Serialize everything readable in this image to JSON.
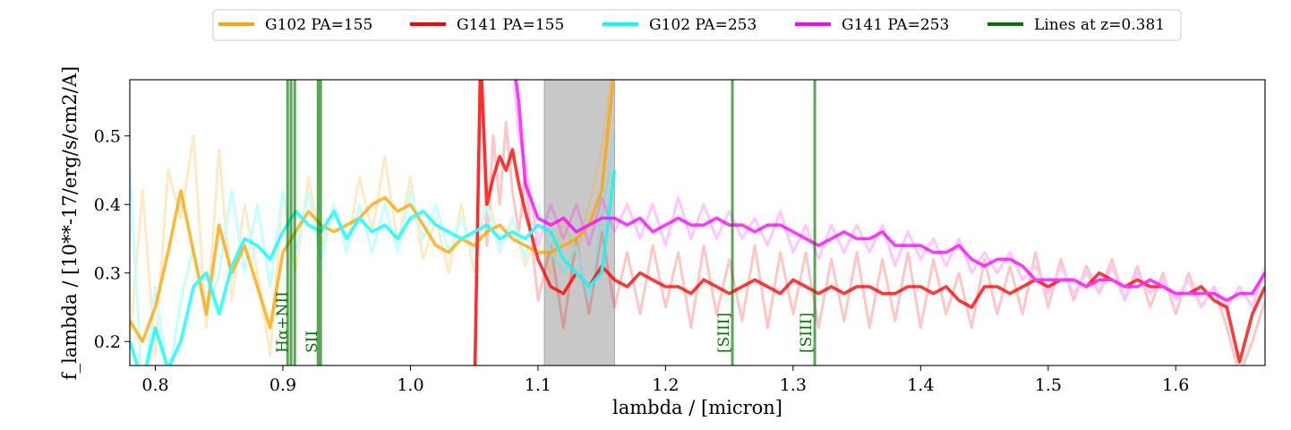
{
  "chart_data": {
    "type": "line",
    "xlabel": "lambda / [micron]",
    "ylabel": "f_lambda / [10**-17/erg/s/cm2/A]",
    "xlim": [
      0.78,
      1.67
    ],
    "ylim": [
      0.165,
      0.582
    ],
    "xticks": [
      0.8,
      0.9,
      1.0,
      1.1,
      1.2,
      1.3,
      1.4,
      1.5,
      1.6
    ],
    "xtick_labels": [
      "0.8",
      "0.9",
      "1.0",
      "1.1",
      "1.2",
      "1.3",
      "1.4",
      "1.5",
      "1.6"
    ],
    "yticks": [
      0.2,
      0.3,
      0.4,
      0.5
    ],
    "ytick_labels": [
      "0.2",
      "0.3",
      "0.4",
      "0.5"
    ],
    "grid": false,
    "legend_position": "top-center",
    "shaded_band": {
      "x0": 1.105,
      "x1": 1.16,
      "color": "#c8c8c8"
    },
    "series": [
      {
        "name": "G102 PA=155",
        "color": "#ffa500",
        "x": [
          0.78,
          0.79,
          0.8,
          0.81,
          0.82,
          0.83,
          0.84,
          0.85,
          0.86,
          0.87,
          0.88,
          0.89,
          0.9,
          0.91,
          0.92,
          0.93,
          0.94,
          0.95,
          0.96,
          0.97,
          0.98,
          0.99,
          1.0,
          1.01,
          1.02,
          1.03,
          1.04,
          1.05,
          1.06,
          1.07,
          1.08,
          1.09,
          1.1,
          1.11,
          1.12,
          1.13,
          1.14,
          1.15,
          1.16,
          1.17
        ],
        "values": [
          0.23,
          0.2,
          0.25,
          0.33,
          0.42,
          0.33,
          0.24,
          0.37,
          0.3,
          0.34,
          0.28,
          0.22,
          0.33,
          0.36,
          0.39,
          0.37,
          0.36,
          0.37,
          0.38,
          0.4,
          0.41,
          0.39,
          0.4,
          0.37,
          0.34,
          0.33,
          0.35,
          0.34,
          0.36,
          0.37,
          0.35,
          0.34,
          0.33,
          0.33,
          0.34,
          0.35,
          0.37,
          0.42,
          0.6,
          0.62
        ],
        "noisy_values": [
          0.2,
          0.42,
          0.18,
          0.45,
          0.38,
          0.5,
          0.22,
          0.48,
          0.26,
          0.4,
          0.3,
          0.18,
          0.42,
          0.3,
          0.44,
          0.34,
          0.4,
          0.33,
          0.44,
          0.36,
          0.47,
          0.34,
          0.44,
          0.32,
          0.38,
          0.3,
          0.4,
          0.3,
          0.42,
          0.34,
          0.38,
          0.31,
          0.36,
          0.3,
          0.38,
          0.32,
          0.4,
          0.48,
          0.62,
          0.62
        ]
      },
      {
        "name": "G141 PA=155",
        "color": "#ff0000",
        "x": [
          1.05,
          1.055,
          1.06,
          1.065,
          1.07,
          1.075,
          1.08,
          1.085,
          1.09,
          1.1,
          1.11,
          1.12,
          1.13,
          1.14,
          1.15,
          1.16,
          1.17,
          1.18,
          1.19,
          1.2,
          1.21,
          1.22,
          1.23,
          1.24,
          1.25,
          1.26,
          1.27,
          1.28,
          1.29,
          1.3,
          1.31,
          1.32,
          1.33,
          1.34,
          1.35,
          1.36,
          1.37,
          1.38,
          1.39,
          1.4,
          1.41,
          1.42,
          1.43,
          1.44,
          1.45,
          1.46,
          1.47,
          1.48,
          1.49,
          1.5,
          1.51,
          1.52,
          1.53,
          1.54,
          1.55,
          1.56,
          1.57,
          1.58,
          1.59,
          1.6,
          1.61,
          1.62,
          1.63,
          1.64,
          1.65,
          1.66,
          1.67
        ],
        "values": [
          0.1,
          0.62,
          0.4,
          0.44,
          0.47,
          0.45,
          0.48,
          0.43,
          0.39,
          0.32,
          0.28,
          0.27,
          0.3,
          0.28,
          0.31,
          0.29,
          0.28,
          0.3,
          0.29,
          0.28,
          0.28,
          0.27,
          0.29,
          0.28,
          0.27,
          0.28,
          0.29,
          0.28,
          0.27,
          0.29,
          0.28,
          0.27,
          0.28,
          0.27,
          0.28,
          0.28,
          0.27,
          0.27,
          0.28,
          0.28,
          0.27,
          0.28,
          0.26,
          0.25,
          0.28,
          0.28,
          0.27,
          0.28,
          0.29,
          0.28,
          0.29,
          0.29,
          0.28,
          0.3,
          0.29,
          0.28,
          0.29,
          0.28,
          0.28,
          0.27,
          0.27,
          0.28,
          0.26,
          0.25,
          0.17,
          0.24,
          0.28
        ],
        "noisy_values": [
          0.1,
          0.62,
          0.34,
          0.5,
          0.4,
          0.52,
          0.42,
          0.36,
          0.44,
          0.26,
          0.34,
          0.22,
          0.35,
          0.24,
          0.36,
          0.25,
          0.33,
          0.24,
          0.34,
          0.25,
          0.33,
          0.22,
          0.34,
          0.24,
          0.32,
          0.23,
          0.34,
          0.22,
          0.33,
          0.24,
          0.33,
          0.22,
          0.32,
          0.23,
          0.33,
          0.22,
          0.32,
          0.23,
          0.33,
          0.22,
          0.32,
          0.24,
          0.3,
          0.22,
          0.32,
          0.24,
          0.31,
          0.24,
          0.33,
          0.25,
          0.32,
          0.26,
          0.31,
          0.27,
          0.32,
          0.26,
          0.31,
          0.25,
          0.3,
          0.24,
          0.3,
          0.25,
          0.28,
          0.22,
          0.15,
          0.2,
          0.26
        ]
      },
      {
        "name": "G102 PA=253",
        "color": "#00ffff",
        "x": [
          0.78,
          0.79,
          0.8,
          0.81,
          0.82,
          0.83,
          0.84,
          0.85,
          0.86,
          0.87,
          0.88,
          0.89,
          0.9,
          0.91,
          0.92,
          0.93,
          0.94,
          0.95,
          0.96,
          0.97,
          0.98,
          0.99,
          1.0,
          1.01,
          1.02,
          1.03,
          1.04,
          1.05,
          1.06,
          1.07,
          1.08,
          1.09,
          1.1,
          1.11,
          1.12,
          1.13,
          1.14,
          1.15,
          1.16
        ],
        "values": [
          0.2,
          0.14,
          0.22,
          0.16,
          0.2,
          0.28,
          0.3,
          0.24,
          0.31,
          0.35,
          0.34,
          0.32,
          0.36,
          0.39,
          0.37,
          0.36,
          0.39,
          0.35,
          0.38,
          0.36,
          0.37,
          0.35,
          0.38,
          0.39,
          0.37,
          0.36,
          0.35,
          0.36,
          0.37,
          0.35,
          0.36,
          0.35,
          0.37,
          0.36,
          0.32,
          0.3,
          0.28,
          0.3,
          0.45
        ],
        "noisy_values": [
          0.45,
          0.12,
          0.28,
          0.14,
          0.26,
          0.34,
          0.24,
          0.3,
          0.42,
          0.3,
          0.4,
          0.28,
          0.42,
          0.33,
          0.42,
          0.32,
          0.4,
          0.33,
          0.4,
          0.33,
          0.4,
          0.33,
          0.42,
          0.35,
          0.4,
          0.33,
          0.38,
          0.33,
          0.4,
          0.33,
          0.38,
          0.32,
          0.4,
          0.33,
          0.3,
          0.34,
          0.26,
          0.38,
          0.5
        ]
      },
      {
        "name": "G141 PA=253",
        "color": "#ff00ff",
        "x": [
          1.08,
          1.085,
          1.09,
          1.1,
          1.11,
          1.12,
          1.13,
          1.14,
          1.15,
          1.16,
          1.17,
          1.18,
          1.19,
          1.2,
          1.21,
          1.22,
          1.23,
          1.24,
          1.25,
          1.26,
          1.27,
          1.28,
          1.29,
          1.3,
          1.31,
          1.32,
          1.33,
          1.34,
          1.35,
          1.36,
          1.37,
          1.38,
          1.39,
          1.4,
          1.41,
          1.42,
          1.43,
          1.44,
          1.45,
          1.46,
          1.47,
          1.48,
          1.49,
          1.5,
          1.51,
          1.52,
          1.53,
          1.54,
          1.55,
          1.56,
          1.57,
          1.58,
          1.59,
          1.6,
          1.61,
          1.62,
          1.63,
          1.64,
          1.65,
          1.66,
          1.67
        ],
        "values": [
          0.62,
          0.55,
          0.43,
          0.38,
          0.37,
          0.38,
          0.36,
          0.37,
          0.38,
          0.38,
          0.37,
          0.38,
          0.36,
          0.37,
          0.38,
          0.37,
          0.37,
          0.38,
          0.37,
          0.37,
          0.36,
          0.37,
          0.37,
          0.36,
          0.35,
          0.34,
          0.35,
          0.36,
          0.35,
          0.35,
          0.36,
          0.34,
          0.34,
          0.34,
          0.33,
          0.33,
          0.34,
          0.32,
          0.31,
          0.32,
          0.32,
          0.31,
          0.29,
          0.29,
          0.29,
          0.29,
          0.28,
          0.29,
          0.29,
          0.28,
          0.28,
          0.29,
          0.28,
          0.27,
          0.27,
          0.27,
          0.27,
          0.26,
          0.27,
          0.27,
          0.3
        ],
        "noisy_values": [
          0.62,
          0.5,
          0.46,
          0.34,
          0.4,
          0.35,
          0.4,
          0.34,
          0.41,
          0.36,
          0.4,
          0.35,
          0.4,
          0.34,
          0.41,
          0.35,
          0.4,
          0.35,
          0.39,
          0.35,
          0.38,
          0.34,
          0.39,
          0.33,
          0.37,
          0.32,
          0.37,
          0.33,
          0.37,
          0.33,
          0.37,
          0.31,
          0.36,
          0.32,
          0.35,
          0.31,
          0.35,
          0.3,
          0.33,
          0.3,
          0.33,
          0.29,
          0.31,
          0.27,
          0.31,
          0.27,
          0.3,
          0.27,
          0.31,
          0.26,
          0.3,
          0.27,
          0.29,
          0.26,
          0.29,
          0.25,
          0.28,
          0.25,
          0.28,
          0.25,
          0.31
        ]
      }
    ],
    "lines_legend": {
      "name": "Lines at z=0.381",
      "color": "#007700"
    },
    "emission_lines": [
      {
        "x": 0.9037,
        "label": ""
      },
      {
        "x": 0.9064,
        "label": "Hα+NII"
      },
      {
        "x": 0.9093,
        "label": ""
      },
      {
        "x": 0.9276,
        "label": ""
      },
      {
        "x": 0.9296,
        "label": "SII"
      },
      {
        "x": 1.2524,
        "label": "[SIII]"
      },
      {
        "x": 1.317,
        "label": "[SIII]"
      }
    ]
  }
}
